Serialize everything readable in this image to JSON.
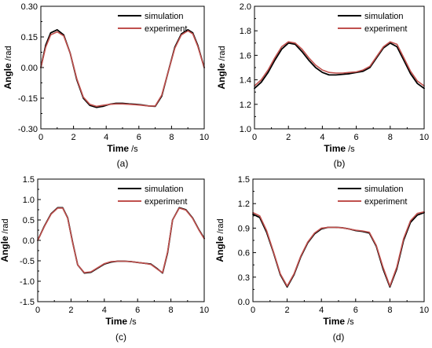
{
  "chart_data": [
    {
      "type": "line",
      "panel_label": "(a)",
      "xlabel": "Time",
      "xunit": "/s",
      "ylabel": "Angle",
      "yunit": "/rad",
      "xlim": [
        0,
        10
      ],
      "ylim": [
        -0.3,
        0.3
      ],
      "xticks": [
        0,
        2,
        4,
        6,
        8,
        10
      ],
      "xtick_labels": [
        "0",
        "2",
        "4",
        "6",
        "8",
        "10"
      ],
      "yticks": [
        -0.3,
        -0.15,
        0.0,
        0.15,
        0.3
      ],
      "ytick_labels": [
        "-0.30",
        "-0.15",
        "0.00",
        "0.15",
        "0.30"
      ],
      "legend_position": "top-right",
      "series": [
        {
          "name": "simulation",
          "color": "#000000",
          "x": [
            0,
            0.3,
            0.6,
            1.0,
            1.4,
            1.8,
            2.2,
            2.6,
            3.0,
            3.4,
            3.8,
            4.2,
            4.6,
            5.0,
            5.4,
            5.8,
            6.2,
            6.6,
            7.0,
            7.4,
            7.8,
            8.2,
            8.6,
            9.0,
            9.3,
            9.6,
            10.0
          ],
          "y": [
            0.0,
            0.11,
            0.17,
            0.185,
            0.16,
            0.07,
            -0.06,
            -0.15,
            -0.185,
            -0.195,
            -0.19,
            -0.18,
            -0.175,
            -0.175,
            -0.178,
            -0.18,
            -0.183,
            -0.188,
            -0.19,
            -0.14,
            -0.02,
            0.1,
            0.165,
            0.185,
            0.17,
            0.11,
            0.0
          ]
        },
        {
          "name": "experiment",
          "color": "#c0504d",
          "x": [
            0,
            0.3,
            0.6,
            1.0,
            1.4,
            1.8,
            2.2,
            2.6,
            3.0,
            3.4,
            3.8,
            4.2,
            4.6,
            5.0,
            5.4,
            5.8,
            6.2,
            6.6,
            7.0,
            7.4,
            7.8,
            8.2,
            8.6,
            9.0,
            9.3,
            9.6,
            10.0
          ],
          "y": [
            0.0,
            0.1,
            0.16,
            0.175,
            0.155,
            0.07,
            -0.055,
            -0.145,
            -0.18,
            -0.19,
            -0.185,
            -0.18,
            -0.178,
            -0.178,
            -0.18,
            -0.182,
            -0.185,
            -0.188,
            -0.188,
            -0.135,
            -0.02,
            0.095,
            0.16,
            0.18,
            0.165,
            0.105,
            0.0
          ]
        }
      ]
    },
    {
      "type": "line",
      "panel_label": "(b)",
      "xlabel": "Time",
      "xunit": "/s",
      "ylabel": "Angle",
      "yunit": "/rad",
      "xlim": [
        0,
        10
      ],
      "ylim": [
        1.0,
        2.0
      ],
      "xticks": [
        0,
        2,
        4,
        6,
        8,
        10
      ],
      "xtick_labels": [
        "0",
        "2",
        "4",
        "6",
        "8",
        "10"
      ],
      "yticks": [
        1.0,
        1.2,
        1.4,
        1.6,
        1.8,
        2.0
      ],
      "ytick_labels": [
        "1.0",
        "1.2",
        "1.4",
        "1.6",
        "1.8",
        "2.0"
      ],
      "legend_position": "top-right",
      "series": [
        {
          "name": "simulation",
          "color": "#000000",
          "x": [
            0,
            0.4,
            0.8,
            1.2,
            1.6,
            2.0,
            2.4,
            2.8,
            3.2,
            3.6,
            4.0,
            4.4,
            4.8,
            5.2,
            5.6,
            6.0,
            6.4,
            6.8,
            7.2,
            7.6,
            8.0,
            8.4,
            8.8,
            9.2,
            9.6,
            10.0
          ],
          "y": [
            1.33,
            1.38,
            1.46,
            1.56,
            1.65,
            1.7,
            1.69,
            1.63,
            1.56,
            1.5,
            1.46,
            1.44,
            1.44,
            1.445,
            1.45,
            1.46,
            1.47,
            1.5,
            1.58,
            1.66,
            1.7,
            1.67,
            1.56,
            1.45,
            1.37,
            1.33
          ]
        },
        {
          "name": "experiment",
          "color": "#c0504d",
          "x": [
            0,
            0.4,
            0.8,
            1.2,
            1.6,
            2.0,
            2.4,
            2.8,
            3.2,
            3.6,
            4.0,
            4.4,
            4.8,
            5.2,
            5.6,
            6.0,
            6.4,
            6.8,
            7.2,
            7.6,
            8.0,
            8.4,
            8.8,
            9.2,
            9.6,
            10.0
          ],
          "y": [
            1.35,
            1.4,
            1.48,
            1.58,
            1.67,
            1.71,
            1.7,
            1.65,
            1.58,
            1.52,
            1.48,
            1.46,
            1.455,
            1.455,
            1.46,
            1.465,
            1.48,
            1.51,
            1.59,
            1.67,
            1.71,
            1.69,
            1.58,
            1.47,
            1.39,
            1.35
          ]
        }
      ]
    },
    {
      "type": "line",
      "panel_label": "(c)",
      "xlabel": "Time",
      "xunit": "/s",
      "ylabel": "Angle",
      "yunit": "/rad",
      "xlim": [
        0,
        10
      ],
      "ylim": [
        -1.5,
        1.5
      ],
      "xticks": [
        0,
        2,
        4,
        6,
        8,
        10
      ],
      "xtick_labels": [
        "0",
        "2",
        "4",
        "6",
        "8",
        "10"
      ],
      "yticks": [
        -1.5,
        -1.0,
        -0.5,
        0.0,
        0.5,
        1.0,
        1.5
      ],
      "ytick_labels": [
        "-1.5",
        "-1.0",
        "-0.5",
        "0.0",
        "0.5",
        "1.0",
        "1.5"
      ],
      "legend_position": "top-right",
      "series": [
        {
          "name": "simulation",
          "color": "#000000",
          "x": [
            0,
            0.4,
            0.8,
            1.2,
            1.5,
            1.8,
            2.1,
            2.4,
            2.8,
            3.2,
            3.6,
            4.0,
            4.4,
            4.8,
            5.2,
            5.6,
            6.0,
            6.4,
            6.8,
            7.2,
            7.5,
            7.8,
            8.1,
            8.5,
            8.9,
            9.3,
            9.7,
            10.0
          ],
          "y": [
            0.0,
            0.35,
            0.65,
            0.8,
            0.8,
            0.55,
            -0.05,
            -0.6,
            -0.8,
            -0.78,
            -0.68,
            -0.58,
            -0.53,
            -0.51,
            -0.51,
            -0.52,
            -0.54,
            -0.56,
            -0.58,
            -0.7,
            -0.8,
            -0.3,
            0.5,
            0.8,
            0.75,
            0.55,
            0.25,
            0.05
          ]
        },
        {
          "name": "experiment",
          "color": "#c0504d",
          "x": [
            0,
            0.4,
            0.8,
            1.2,
            1.5,
            1.8,
            2.1,
            2.4,
            2.8,
            3.2,
            3.6,
            4.0,
            4.4,
            4.8,
            5.2,
            5.6,
            6.0,
            6.4,
            6.8,
            7.2,
            7.5,
            7.8,
            8.1,
            8.5,
            8.9,
            9.3,
            9.7,
            10.0
          ],
          "y": [
            0.0,
            0.34,
            0.64,
            0.79,
            0.79,
            0.54,
            -0.06,
            -0.6,
            -0.79,
            -0.77,
            -0.67,
            -0.57,
            -0.52,
            -0.51,
            -0.51,
            -0.52,
            -0.54,
            -0.56,
            -0.59,
            -0.71,
            -0.79,
            -0.28,
            0.5,
            0.79,
            0.74,
            0.54,
            0.24,
            0.04
          ]
        }
      ]
    },
    {
      "type": "line",
      "panel_label": "(d)",
      "xlabel": "Time",
      "xunit": "/s",
      "ylabel": "Angle",
      "yunit": "/rad",
      "xlim": [
        0,
        10
      ],
      "ylim": [
        0.0,
        1.5
      ],
      "xticks": [
        0,
        2,
        4,
        6,
        8,
        10
      ],
      "xtick_labels": [
        "0",
        "2",
        "4",
        "6",
        "8",
        "10"
      ],
      "yticks": [
        0.0,
        0.3,
        0.6,
        0.9,
        1.2,
        1.5
      ],
      "ytick_labels": [
        "0.0",
        "0.3",
        "0.6",
        "0.9",
        "1.2",
        "1.5"
      ],
      "legend_position": "top-right",
      "series": [
        {
          "name": "simulation",
          "color": "#000000",
          "x": [
            0,
            0.4,
            0.8,
            1.2,
            1.6,
            2.0,
            2.4,
            2.8,
            3.2,
            3.6,
            4.0,
            4.4,
            4.8,
            5.2,
            5.6,
            6.0,
            6.4,
            6.8,
            7.2,
            7.6,
            8.0,
            8.4,
            8.8,
            9.2,
            9.6,
            10.0
          ],
          "y": [
            1.07,
            1.03,
            0.85,
            0.6,
            0.33,
            0.18,
            0.33,
            0.55,
            0.72,
            0.83,
            0.89,
            0.91,
            0.91,
            0.905,
            0.89,
            0.87,
            0.86,
            0.84,
            0.68,
            0.4,
            0.18,
            0.4,
            0.75,
            0.97,
            1.06,
            1.09
          ]
        },
        {
          "name": "experiment",
          "color": "#c0504d",
          "x": [
            0,
            0.4,
            0.8,
            1.2,
            1.6,
            2.0,
            2.4,
            2.8,
            3.2,
            3.6,
            4.0,
            4.4,
            4.8,
            5.2,
            5.6,
            6.0,
            6.4,
            6.8,
            7.2,
            7.6,
            8.0,
            8.4,
            8.8,
            9.2,
            9.6,
            10.0
          ],
          "y": [
            1.09,
            1.05,
            0.87,
            0.61,
            0.34,
            0.19,
            0.34,
            0.56,
            0.73,
            0.84,
            0.9,
            0.91,
            0.91,
            0.905,
            0.89,
            0.875,
            0.865,
            0.85,
            0.69,
            0.42,
            0.19,
            0.42,
            0.77,
            0.99,
            1.08,
            1.1
          ]
        }
      ]
    }
  ]
}
